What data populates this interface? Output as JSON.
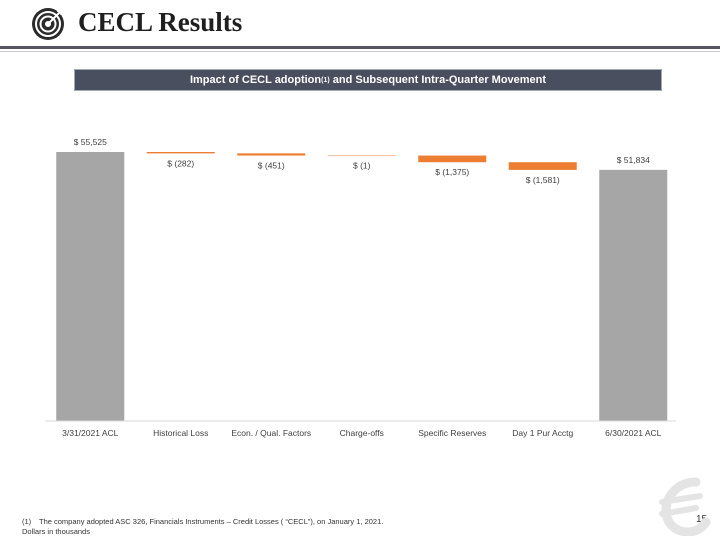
{
  "header": {
    "title": "CECL Results"
  },
  "banner": {
    "text_before": "Impact of CECL adoption",
    "superscript": "(1)",
    "text_after": " and Subsequent Intra-Quarter Movement"
  },
  "footer": {
    "footnote_marker": "(1)",
    "footnote_text": "The company adopted ASC 326, Financials Instruments – Credit Losses ( “CECL”), on January 1, 2021.",
    "units_note": "Dollars in thousands",
    "page_number": "15"
  },
  "colors": {
    "total_bar": "#a6a6a6",
    "decrease_bar": "#ed7d31",
    "header_rule": "#555561",
    "banner_bg": "#4a4f60"
  },
  "icons": {
    "logo": "target-icon",
    "watermark": "brand-mark-icon"
  },
  "chart_data": {
    "type": "waterfall",
    "categories": [
      "3/31/2021 ACL",
      "Historical Loss",
      "Econ. / Qual. Factors",
      "Charge-offs",
      "Specific Reserves",
      "Day 1 Pur Acctg",
      "6/30/2021 ACL"
    ],
    "values": [
      55525,
      -282,
      -451,
      -1,
      -1375,
      -1581,
      51834
    ],
    "kinds": [
      "total",
      "delta",
      "delta",
      "delta",
      "delta",
      "delta",
      "total"
    ],
    "data_labels": [
      "$ 55,525",
      "$ (282)",
      "$ (451)",
      "$ (1)",
      "$ (1,375)",
      "$ (1,581)",
      "$ 51,834"
    ],
    "ylim": [
      0,
      56000
    ],
    "grid": false,
    "legend": "none"
  }
}
